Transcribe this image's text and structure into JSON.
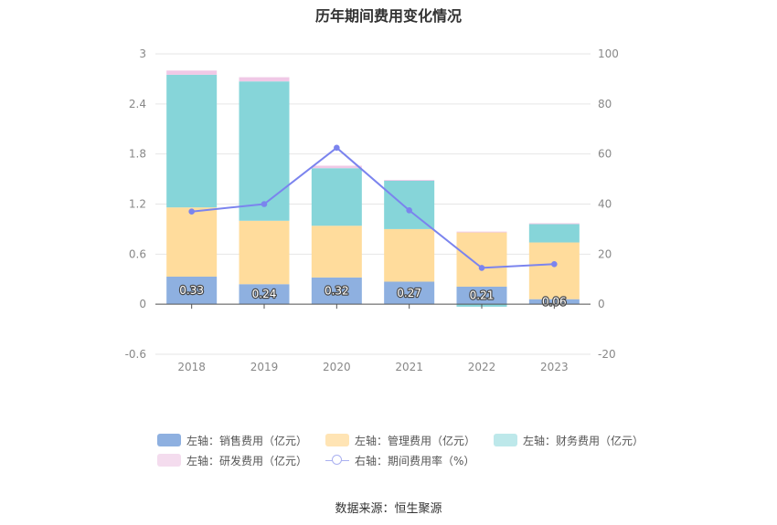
{
  "chart_data": {
    "type": "bar",
    "title": "历年期间费用变化情况",
    "categories": [
      "2018",
      "2019",
      "2020",
      "2021",
      "2022",
      "2023"
    ],
    "stacked": true,
    "left_axis": {
      "ylim": [
        -0.6,
        3
      ],
      "ticks": [
        "3",
        "2.4",
        "1.8",
        "1.2",
        "0.6",
        "0",
        "-0.6"
      ],
      "tick_values": [
        3,
        2.4,
        1.8,
        1.2,
        0.6,
        0,
        -0.6
      ]
    },
    "right_axis": {
      "ylim": [
        -20,
        100
      ],
      "ticks": [
        "100",
        "80",
        "60",
        "40",
        "20",
        "0",
        "-20"
      ],
      "tick_values": [
        100,
        80,
        60,
        40,
        20,
        0,
        -20
      ]
    },
    "series": [
      {
        "name": "左轴：销售费用（亿元）",
        "type": "bar",
        "axis": "left",
        "color": "#8eb0e0",
        "values": [
          0.33,
          0.24,
          0.32,
          0.27,
          0.21,
          0.06
        ],
        "labels": [
          "0.33",
          "0.24",
          "0.32",
          "0.27",
          "0.21",
          "0.06"
        ]
      },
      {
        "name": "左轴：管理费用（亿元）",
        "type": "bar",
        "axis": "left",
        "color": "#ffdc9c",
        "values": [
          0.83,
          0.76,
          0.62,
          0.63,
          0.65,
          0.68
        ]
      },
      {
        "name": "左轴：财务费用（亿元）",
        "type": "bar",
        "axis": "left",
        "color": "#86d5d9",
        "values": [
          1.59,
          1.67,
          0.69,
          0.58,
          -0.03,
          0.22
        ]
      },
      {
        "name": "左轴：研发费用（亿元）",
        "type": "bar",
        "axis": "left",
        "color": "#f0c8e6",
        "values": [
          0.05,
          0.05,
          0.03,
          0.01,
          0.01,
          0.01
        ]
      },
      {
        "name": "右轴：期间费用率（%）",
        "type": "line",
        "axis": "right",
        "color": "#7b84ee",
        "values": [
          37,
          40,
          62.5,
          37.5,
          14.5,
          16
        ]
      }
    ],
    "legend_position": "bottom"
  },
  "source": "数据来源：恒生聚源"
}
